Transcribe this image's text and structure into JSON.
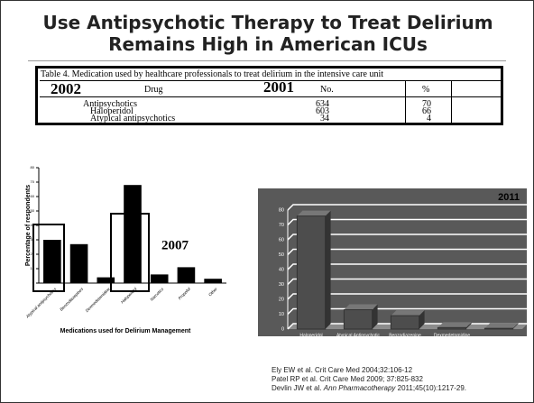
{
  "title": "Use Antipsychotic Therapy to Treat Delirium Remains High in American ICUs",
  "table": {
    "caption": "Table 4. Medication used by healthcare professionals to treat delirium in the intensive care unit",
    "year_left": "2002",
    "year_right": "2001",
    "header": [
      "Drug",
      "No.",
      "%"
    ],
    "rows": [
      [
        "Antipsychotics",
        "634",
        "70"
      ],
      [
        "Haloperidol",
        "603",
        "66"
      ],
      [
        "Atypical antipsychotics",
        "34",
        "4"
      ]
    ]
  },
  "chart_data": [
    {
      "type": "bar",
      "annotation": "2007",
      "ylabel": "Percentage of respondents",
      "xlabel": "Medications used for Delirium Management",
      "categories": [
        "Atypical antipsychotics",
        "Benzodiazepines",
        "Dexmedetomidine",
        "Haloperidol",
        "Narcotics",
        "Propofol",
        "Other"
      ],
      "values": [
        30,
        27,
        4,
        68,
        6,
        11,
        3
      ],
      "color": "#000000",
      "ylim": [
        0,
        80
      ],
      "yticks": [
        0,
        10,
        20,
        30,
        40,
        50,
        60,
        70,
        80
      ]
    },
    {
      "type": "bar3d",
      "annotation": "2011",
      "categories": [
        "Haloperidol",
        "Atypical Antipsychotic",
        "Benzodiazepine",
        "Dexmedetomidine",
        null
      ],
      "values": [
        76,
        13,
        9,
        1,
        0.5
      ],
      "color": "#4d4d4d",
      "background": "#595959",
      "ylim": [
        0,
        80
      ],
      "yticks": [
        0,
        10,
        20,
        30,
        40,
        50,
        60,
        70,
        80
      ],
      "grid": true
    }
  ],
  "references": [
    [
      "Ely EW et al.  Crit Care Med 2004;32:106-12"
    ],
    [
      "Patel RP et al.  Crit Care Med 2009; 37:825-832"
    ],
    [
      "Devlin JW et al.  ",
      "Ann Pharmacotherapy",
      " 2011;45(10):1217-29."
    ]
  ]
}
